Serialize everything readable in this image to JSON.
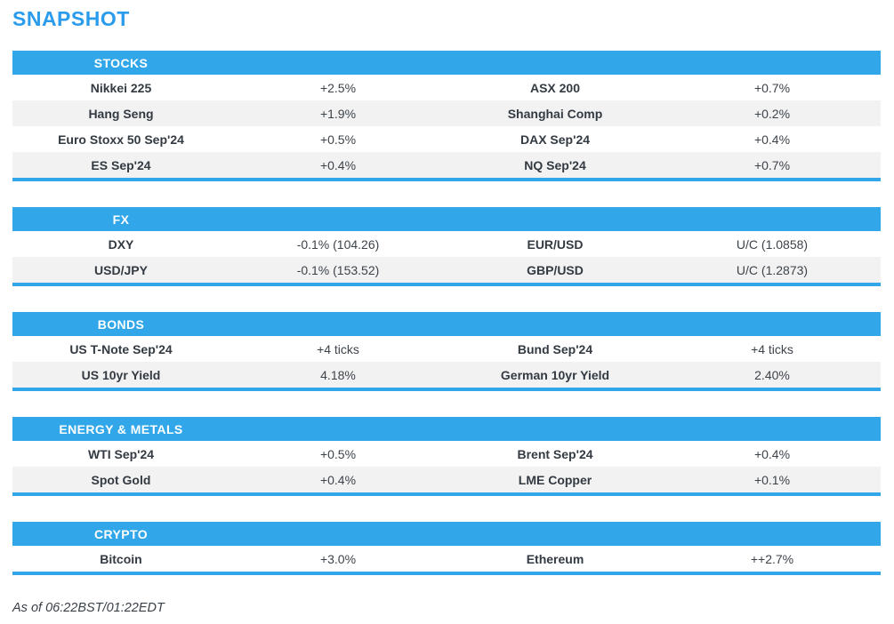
{
  "page": {
    "title": "SNAPSHOT",
    "footer": "As of 06:22BST/01:22EDT"
  },
  "colors": {
    "accent_blue": "#31a7ea",
    "title_blue": "#2b9cec",
    "alt_row_gray": "#f2f2f2",
    "label_text": "#333a42",
    "value_text": "#3d434a",
    "header_text": "#ffffff"
  },
  "sections": [
    {
      "header": "STOCKS",
      "rows": [
        {
          "label1": "Nikkei 225",
          "value1": "+2.5%",
          "label2": "ASX 200",
          "value2": "+0.7%"
        },
        {
          "label1": "Hang Seng",
          "value1": "+1.9%",
          "label2": "Shanghai Comp",
          "value2": "+0.2%"
        },
        {
          "label1": "Euro Stoxx 50 Sep'24",
          "value1": "+0.5%",
          "label2": "DAX Sep'24",
          "value2": "+0.4%"
        },
        {
          "label1": "ES Sep'24",
          "value1": "+0.4%",
          "label2": "NQ Sep'24",
          "value2": "+0.7%"
        }
      ]
    },
    {
      "header": "FX",
      "rows": [
        {
          "label1": "DXY",
          "value1": "-0.1% (104.26)",
          "label2": "EUR/USD",
          "value2": "U/C (1.0858)"
        },
        {
          "label1": "USD/JPY",
          "value1": "-0.1% (153.52)",
          "label2": "GBP/USD",
          "value2": "U/C (1.2873)"
        }
      ]
    },
    {
      "header": "BONDS",
      "rows": [
        {
          "label1": "US T-Note Sep'24",
          "value1": "+4 ticks",
          "label2": "Bund Sep'24",
          "value2": "+4 ticks"
        },
        {
          "label1": "US 10yr Yield",
          "value1": "4.18%",
          "label2": "German 10yr Yield",
          "value2": "2.40%"
        }
      ]
    },
    {
      "header": "ENERGY & METALS",
      "rows": [
        {
          "label1": "WTI Sep'24",
          "value1": "+0.5%",
          "label2": "Brent Sep'24",
          "value2": "+0.4%"
        },
        {
          "label1": "Spot Gold",
          "value1": "+0.4%",
          "label2": "LME Copper",
          "value2": "+0.1%"
        }
      ]
    },
    {
      "header": "CRYPTO",
      "rows": [
        {
          "label1": "Bitcoin",
          "value1": "+3.0%",
          "label2": "Ethereum",
          "value2": "++2.7%"
        }
      ]
    }
  ]
}
